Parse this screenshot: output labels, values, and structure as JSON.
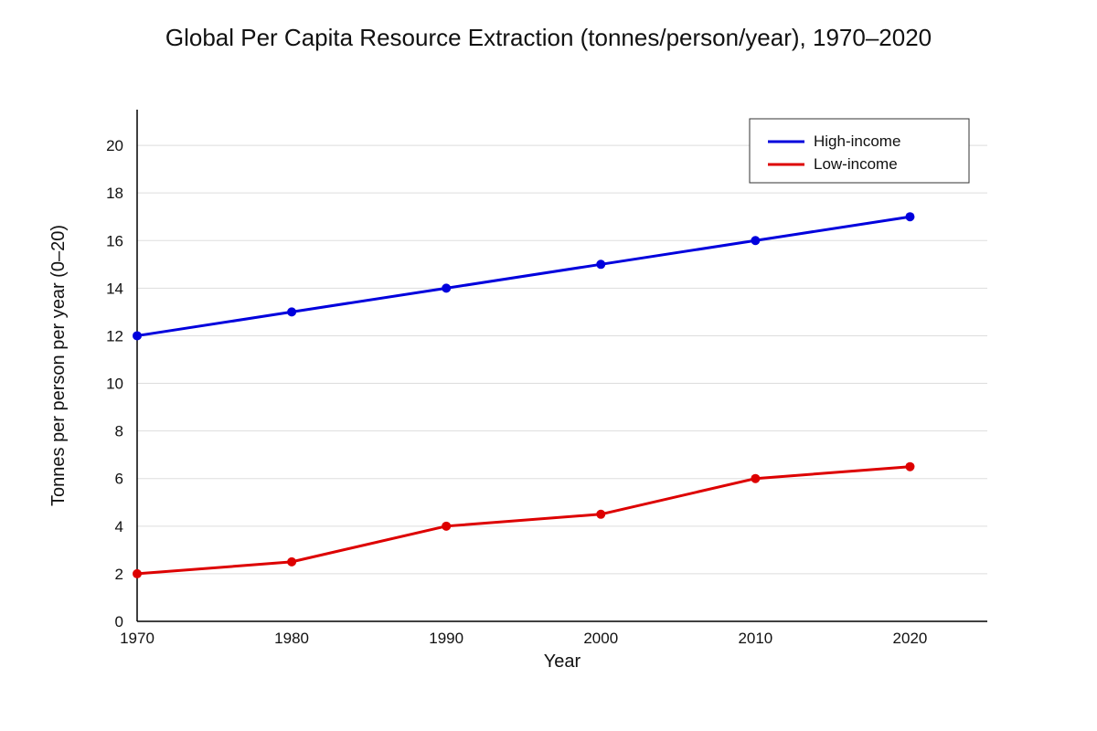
{
  "chart_data": {
    "type": "line",
    "title": "Global Per Capita Resource Extraction (tonnes/person/year), 1970–2020",
    "xlabel": "Year",
    "ylabel": "Tonnes per person per year (0–20)",
    "x": [
      1970,
      1980,
      1990,
      2000,
      2010,
      2020
    ],
    "xlim": [
      1970,
      2025
    ],
    "ylim": [
      0,
      21.5
    ],
    "yticks": [
      0,
      2,
      4,
      6,
      8,
      10,
      12,
      14,
      16,
      18,
      20
    ],
    "grid": true,
    "legend_position": "top-right",
    "series": [
      {
        "name": "High-income",
        "color": "#0000dd",
        "values": [
          12,
          13,
          14,
          15,
          16,
          17
        ]
      },
      {
        "name": "Low-income",
        "color": "#dd0000",
        "values": [
          2,
          2.5,
          4,
          4.5,
          6,
          6.5
        ]
      }
    ]
  }
}
